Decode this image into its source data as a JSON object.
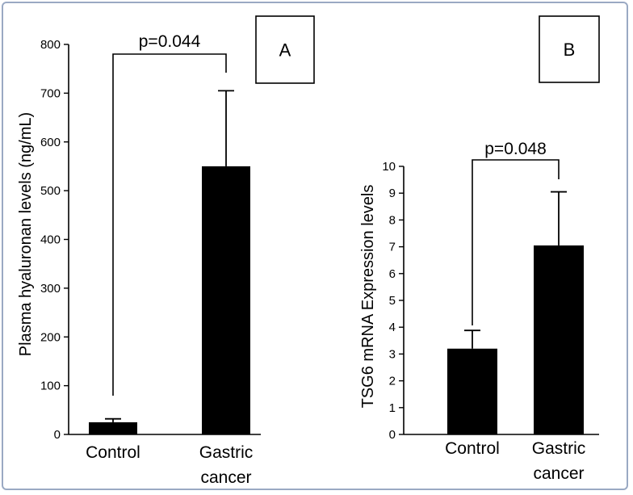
{
  "chart_data": [
    {
      "type": "bar",
      "panel": "A",
      "ylabel": "Plasma hyaluronan levels (ng/mL)",
      "categories": [
        "Control",
        "Gastric cancer"
      ],
      "category_lines": [
        [
          "Control"
        ],
        [
          "Gastric",
          "cancer"
        ]
      ],
      "values": [
        25,
        550
      ],
      "errors": [
        7,
        155
      ],
      "ylim": [
        0,
        800
      ],
      "yticks": [
        0,
        100,
        200,
        300,
        400,
        500,
        600,
        700,
        800
      ],
      "pvalue": "p=0.044",
      "colors": {
        "bar": "#000000"
      }
    },
    {
      "type": "bar",
      "panel": "B",
      "ylabel": "TSG6 mRNA Expression levels",
      "categories": [
        "Control",
        "Gastric cancer"
      ],
      "category_lines": [
        [
          "Control"
        ],
        [
          "Gastric",
          "cancer"
        ]
      ],
      "values": [
        3.2,
        7.05
      ],
      "errors": [
        0.68,
        2.0
      ],
      "ylim": [
        0,
        10
      ],
      "yticks": [
        0,
        1,
        2,
        3,
        4,
        5,
        6,
        7,
        8,
        9,
        10
      ],
      "pvalue": "p=0.048",
      "colors": {
        "bar": "#000000"
      }
    }
  ]
}
